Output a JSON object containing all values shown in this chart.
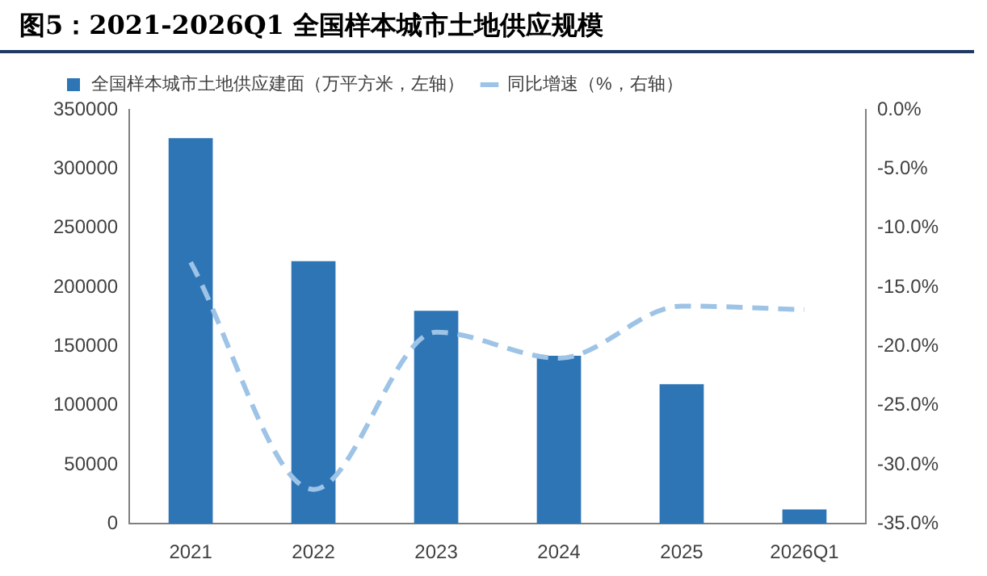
{
  "chart_data": {
    "type": "bar",
    "title": "图5：2021-2026Q1 全国样本城市土地供应规模",
    "categories": [
      "2021",
      "2022",
      "2023",
      "2024",
      "2025",
      "2026Q1"
    ],
    "series": [
      {
        "name": "全国样本城市土地供应建面（万平方米，左轴）",
        "color": "#2e75b6",
        "values": [
          326000,
          222000,
          180000,
          142000,
          118000,
          12000
        ]
      },
      {
        "name": "同比增速（%，右轴）",
        "type": "line",
        "axis": "y2",
        "color": "#9dc3e6",
        "line_style": "dashed",
        "values": [
          -12.9,
          -32.1,
          -18.8,
          -21.0,
          -16.6,
          -16.9
        ]
      }
    ],
    "ylim": [
      0,
      350000
    ],
    "yticks": [
      0,
      50000,
      100000,
      150000,
      200000,
      250000,
      300000,
      350000
    ],
    "y2lim": [
      -35,
      0
    ],
    "y2ticks": [
      {
        "value": 0,
        "label": "0.0%"
      },
      {
        "value": -5,
        "label": "-5.0%"
      },
      {
        "value": -10,
        "label": "-10.0%"
      },
      {
        "value": -15,
        "label": "-15.0%"
      },
      {
        "value": -20,
        "label": "-20.0%"
      },
      {
        "value": -25,
        "label": "-25.0%"
      },
      {
        "value": -30,
        "label": "-30.0%"
      },
      {
        "value": -35,
        "label": "-35.0%"
      }
    ],
    "grid": false,
    "legend": "top left",
    "marker": "none"
  }
}
